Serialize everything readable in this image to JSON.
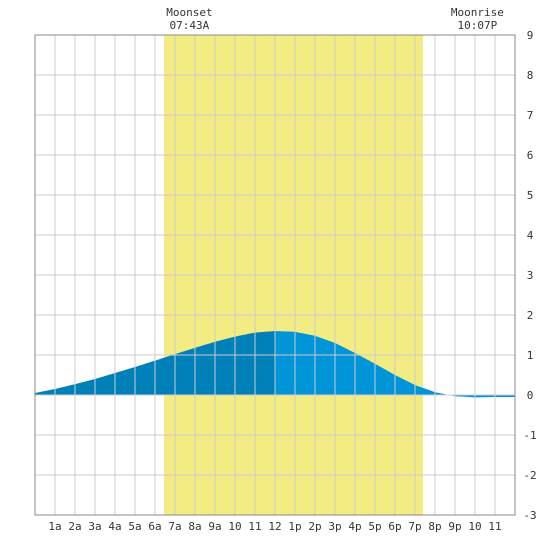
{
  "chart_data": {
    "type": "area",
    "title": "",
    "xlabel": "",
    "ylabel": "",
    "x_range_hours": [
      0,
      24
    ],
    "ylim": [
      -3,
      9
    ],
    "y_ticks": [
      -3,
      -2,
      -1,
      0,
      1,
      2,
      3,
      4,
      5,
      6,
      7,
      8,
      9
    ],
    "x_tick_labels": [
      "1a",
      "2a",
      "3a",
      "4a",
      "5a",
      "6a",
      "7a",
      "8a",
      "9a",
      "10",
      "11",
      "12",
      "1p",
      "2p",
      "3p",
      "4p",
      "5p",
      "6p",
      "7p",
      "8p",
      "9p",
      "10",
      "11"
    ],
    "grid": true,
    "daylight": {
      "start_hour": 6.45,
      "end_hour": 19.4,
      "color": "#f2ec82"
    },
    "annotations": {
      "moonset": {
        "label": "Moonset",
        "time": "07:43A",
        "hour": 7.72
      },
      "moonrise": {
        "label": "Moonrise",
        "time": "10:07P",
        "hour": 22.12
      }
    },
    "series": [
      {
        "x": [
          0,
          1,
          2,
          3,
          4,
          5,
          6,
          7,
          8,
          9,
          10,
          11,
          12,
          13,
          14,
          15,
          16,
          17,
          18,
          19,
          20,
          21,
          22,
          23,
          24
        ],
        "values": [
          0.05,
          0.15,
          0.27,
          0.4,
          0.55,
          0.7,
          0.86,
          1.02,
          1.18,
          1.33,
          1.46,
          1.56,
          1.6,
          1.58,
          1.48,
          1.3,
          1.05,
          0.78,
          0.5,
          0.25,
          0.07,
          -0.03,
          -0.06,
          -0.05,
          -0.05
        ]
      }
    ],
    "colors": {
      "rising": "#0080b8",
      "falling": "#0095d8",
      "grid": "#cccccc",
      "frame": "#888888"
    },
    "fill_split_hour": 12
  }
}
